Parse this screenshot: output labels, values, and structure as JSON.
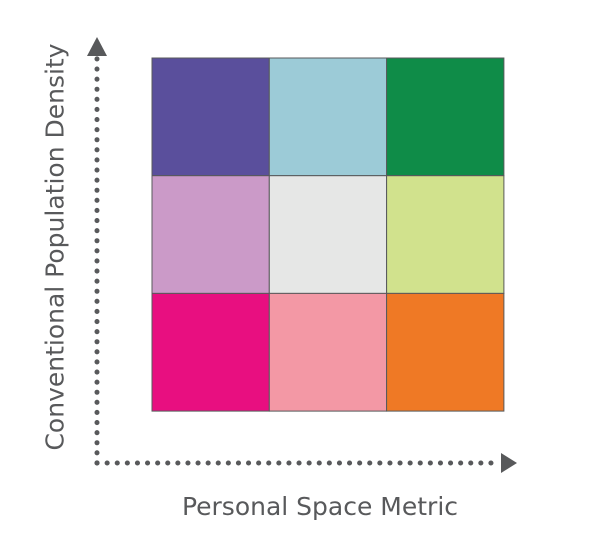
{
  "diagram": {
    "x_axis_label": "Personal Space Metric",
    "y_axis_label": "Conventional Population Density",
    "grid": {
      "rows": 3,
      "cols": 3,
      "cells": [
        {
          "row": 0,
          "col": 0,
          "color": "#5a4f9c"
        },
        {
          "row": 0,
          "col": 1,
          "color": "#9ccbd7"
        },
        {
          "row": 0,
          "col": 2,
          "color": "#0f8c48"
        },
        {
          "row": 1,
          "col": 0,
          "color": "#cb9ac8"
        },
        {
          "row": 1,
          "col": 1,
          "color": "#e6e7e6"
        },
        {
          "row": 1,
          "col": 2,
          "color": "#d1e28d"
        },
        {
          "row": 2,
          "col": 0,
          "color": "#e80f80"
        },
        {
          "row": 2,
          "col": 1,
          "color": "#f398a5"
        },
        {
          "row": 2,
          "col": 2,
          "color": "#ef7925"
        }
      ],
      "border_color": "#58595b"
    },
    "axis_color": "#58595b"
  }
}
